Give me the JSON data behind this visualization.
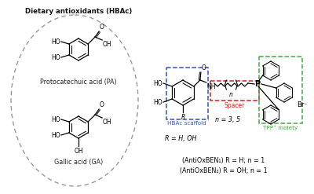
{
  "background_color": "#ffffff",
  "left_panel": {
    "title": "Dietary antioxidants (HBAc)",
    "label1": "Protocatechuic acid (PA)",
    "label2": "Gallic acid (GA)"
  },
  "right_panel": {
    "hbac_label": "HBAc scaffold",
    "spacer_label": "Spacer",
    "tpp_label": "TPP⁺ moiety",
    "n_label": "n = 3, 5",
    "r_label": "R = H, OH",
    "compound1": "(AntiOxBEN₁) R = H; n = 1",
    "compound2": "(AntiOxBEN₂) R = OH; n = 1",
    "br_label": "Br⁻"
  },
  "colors": {
    "background": "#ffffff",
    "ellipse_border": "#999999",
    "hbac_box": "#3355bb",
    "spacer_box": "#cc2222",
    "tpp_box": "#44aa44"
  }
}
